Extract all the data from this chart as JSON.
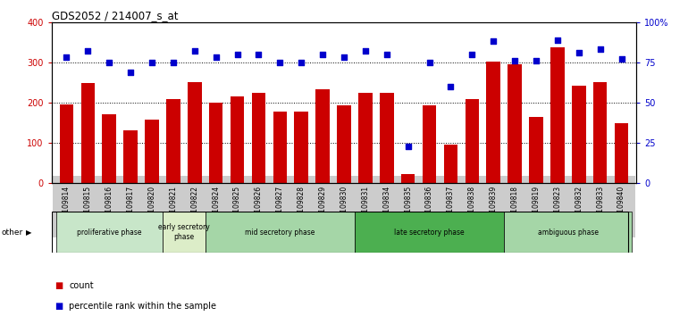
{
  "title": "GDS2052 / 214007_s_at",
  "samples": [
    "GSM109814",
    "GSM109815",
    "GSM109816",
    "GSM109817",
    "GSM109820",
    "GSM109821",
    "GSM109822",
    "GSM109824",
    "GSM109825",
    "GSM109826",
    "GSM109827",
    "GSM109828",
    "GSM109829",
    "GSM109830",
    "GSM109831",
    "GSM109834",
    "GSM109835",
    "GSM109836",
    "GSM109837",
    "GSM109838",
    "GSM109839",
    "GSM109818",
    "GSM109819",
    "GSM109823",
    "GSM109832",
    "GSM109833",
    "GSM109840"
  ],
  "counts": [
    195,
    248,
    172,
    132,
    158,
    210,
    250,
    200,
    215,
    225,
    178,
    178,
    233,
    193,
    225,
    225,
    22,
    193,
    95,
    210,
    303,
    295,
    165,
    338,
    243,
    252,
    150
  ],
  "percentiles": [
    78,
    82,
    75,
    69,
    75,
    75,
    82,
    78,
    80,
    80,
    75,
    75,
    80,
    78,
    82,
    80,
    23,
    75,
    60,
    80,
    88,
    76,
    76,
    89,
    81,
    83,
    77
  ],
  "phases": [
    {
      "label": "proliferative phase",
      "start": 0,
      "end": 5,
      "color": "#c8e6c9"
    },
    {
      "label": "early secretory\nphase",
      "start": 5,
      "end": 7,
      "color": "#dcedc8"
    },
    {
      "label": "mid secretory phase",
      "start": 7,
      "end": 14,
      "color": "#a5d6a7"
    },
    {
      "label": "late secretory phase",
      "start": 14,
      "end": 21,
      "color": "#4caf50"
    },
    {
      "label": "ambiguous phase",
      "start": 21,
      "end": 27,
      "color": "#a5d6a7"
    }
  ],
  "bar_color": "#cc0000",
  "dot_color": "#0000cc",
  "tick_bg_color": "#cccccc",
  "ylim_left": [
    0,
    400
  ],
  "ylim_right": [
    0,
    100
  ],
  "yticks_left": [
    0,
    100,
    200,
    300,
    400
  ],
  "yticks_right": [
    0,
    25,
    50,
    75,
    100
  ],
  "ytick_labels_right": [
    "0",
    "25",
    "50",
    "75",
    "100%"
  ],
  "grid_values": [
    100,
    200,
    300
  ],
  "other_label": "other",
  "legend_count": "count",
  "legend_percentile": "percentile rank within the sample"
}
